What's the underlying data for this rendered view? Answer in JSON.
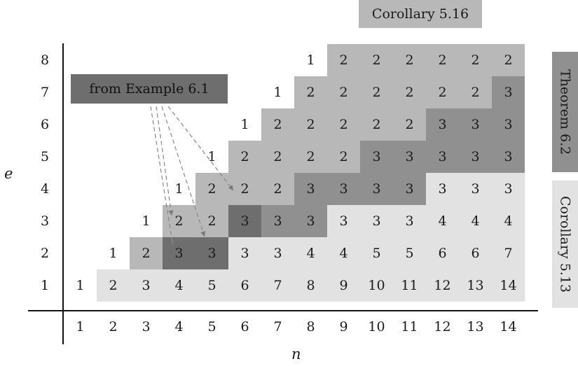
{
  "axes": {
    "y_title": "e",
    "x_title": "n",
    "y_labels": [
      "8",
      "7",
      "6",
      "5",
      "4",
      "3",
      "2",
      "1"
    ],
    "x_labels": [
      "1",
      "2",
      "3",
      "4",
      "5",
      "6",
      "7",
      "8",
      "9",
      "10",
      "11",
      "12",
      "13",
      "14"
    ]
  },
  "annotations": {
    "top_label": "Corollary 5.16",
    "example_label": "from Example 6.1",
    "theorem_label": "Theorem 6.2",
    "corollary_label": "Corollary 5.13"
  },
  "colors": {
    "white": "#ffffff",
    "light": "#e2e2e2",
    "medium": "#b8b8b8",
    "dark": "#909090",
    "darker": "#6e6e6e",
    "example_box": "#6e6e6e",
    "top_box": "#b8b8b8",
    "theorem_box": "#909090",
    "corollary_box": "#e2e2e2"
  },
  "rows": [
    {
      "e": "8",
      "cells": [
        {
          "v": "",
          "s": "white"
        },
        {
          "v": "",
          "s": "white"
        },
        {
          "v": "",
          "s": "white"
        },
        {
          "v": "",
          "s": "white"
        },
        {
          "v": "",
          "s": "white"
        },
        {
          "v": "",
          "s": "white"
        },
        {
          "v": "",
          "s": "white"
        },
        {
          "v": "1",
          "s": "white"
        },
        {
          "v": "2",
          "s": "medium"
        },
        {
          "v": "2",
          "s": "medium"
        },
        {
          "v": "2",
          "s": "medium"
        },
        {
          "v": "2",
          "s": "medium"
        },
        {
          "v": "2",
          "s": "medium"
        },
        {
          "v": "2",
          "s": "medium"
        }
      ]
    },
    {
      "e": "7",
      "cells": [
        {
          "v": "",
          "s": "white"
        },
        {
          "v": "",
          "s": "white"
        },
        {
          "v": "",
          "s": "white"
        },
        {
          "v": "",
          "s": "white"
        },
        {
          "v": "",
          "s": "white"
        },
        {
          "v": "",
          "s": "white"
        },
        {
          "v": "1",
          "s": "white"
        },
        {
          "v": "2",
          "s": "medium"
        },
        {
          "v": "2",
          "s": "medium"
        },
        {
          "v": "2",
          "s": "medium"
        },
        {
          "v": "2",
          "s": "medium"
        },
        {
          "v": "2",
          "s": "medium"
        },
        {
          "v": "2",
          "s": "medium"
        },
        {
          "v": "3",
          "s": "dark"
        }
      ]
    },
    {
      "e": "6",
      "cells": [
        {
          "v": "",
          "s": "white"
        },
        {
          "v": "",
          "s": "white"
        },
        {
          "v": "",
          "s": "white"
        },
        {
          "v": "",
          "s": "white"
        },
        {
          "v": "",
          "s": "white"
        },
        {
          "v": "1",
          "s": "white"
        },
        {
          "v": "2",
          "s": "medium"
        },
        {
          "v": "2",
          "s": "medium"
        },
        {
          "v": "2",
          "s": "medium"
        },
        {
          "v": "2",
          "s": "medium"
        },
        {
          "v": "2",
          "s": "medium"
        },
        {
          "v": "3",
          "s": "dark"
        },
        {
          "v": "3",
          "s": "dark"
        },
        {
          "v": "3",
          "s": "dark"
        }
      ]
    },
    {
      "e": "5",
      "cells": [
        {
          "v": "",
          "s": "white"
        },
        {
          "v": "",
          "s": "white"
        },
        {
          "v": "",
          "s": "white"
        },
        {
          "v": "",
          "s": "white"
        },
        {
          "v": "1",
          "s": "white"
        },
        {
          "v": "2",
          "s": "medium"
        },
        {
          "v": "2",
          "s": "medium"
        },
        {
          "v": "2",
          "s": "medium"
        },
        {
          "v": "2",
          "s": "medium"
        },
        {
          "v": "3",
          "s": "dark"
        },
        {
          "v": "3",
          "s": "dark"
        },
        {
          "v": "3",
          "s": "dark"
        },
        {
          "v": "3",
          "s": "dark"
        },
        {
          "v": "3",
          "s": "dark"
        }
      ]
    },
    {
      "e": "4",
      "cells": [
        {
          "v": "",
          "s": "white"
        },
        {
          "v": "",
          "s": "white"
        },
        {
          "v": "",
          "s": "white"
        },
        {
          "v": "1",
          "s": "white"
        },
        {
          "v": "2",
          "s": "medium"
        },
        {
          "v": "2",
          "s": "medium"
        },
        {
          "v": "2",
          "s": "medium"
        },
        {
          "v": "3",
          "s": "dark"
        },
        {
          "v": "3",
          "s": "dark"
        },
        {
          "v": "3",
          "s": "dark"
        },
        {
          "v": "3",
          "s": "dark"
        },
        {
          "v": "3",
          "s": "light"
        },
        {
          "v": "3",
          "s": "light"
        },
        {
          "v": "3",
          "s": "light"
        }
      ]
    },
    {
      "e": "3",
      "cells": [
        {
          "v": "",
          "s": "white"
        },
        {
          "v": "",
          "s": "white"
        },
        {
          "v": "1",
          "s": "white"
        },
        {
          "v": "2",
          "s": "medium"
        },
        {
          "v": "2",
          "s": "medium"
        },
        {
          "v": "3",
          "s": "darker"
        },
        {
          "v": "3",
          "s": "dark"
        },
        {
          "v": "3",
          "s": "dark"
        },
        {
          "v": "3",
          "s": "light"
        },
        {
          "v": "3",
          "s": "light"
        },
        {
          "v": "3",
          "s": "light"
        },
        {
          "v": "4",
          "s": "light"
        },
        {
          "v": "4",
          "s": "light"
        },
        {
          "v": "4",
          "s": "light"
        }
      ]
    },
    {
      "e": "2",
      "cells": [
        {
          "v": "",
          "s": "white"
        },
        {
          "v": "1",
          "s": "white"
        },
        {
          "v": "2",
          "s": "medium"
        },
        {
          "v": "3",
          "s": "darker"
        },
        {
          "v": "3",
          "s": "darker"
        },
        {
          "v": "3",
          "s": "light"
        },
        {
          "v": "3",
          "s": "light"
        },
        {
          "v": "4",
          "s": "light"
        },
        {
          "v": "4",
          "s": "light"
        },
        {
          "v": "5",
          "s": "light"
        },
        {
          "v": "5",
          "s": "light"
        },
        {
          "v": "6",
          "s": "light"
        },
        {
          "v": "6",
          "s": "light"
        },
        {
          "v": "7",
          "s": "light"
        }
      ]
    },
    {
      "e": "1",
      "cells": [
        {
          "v": "1",
          "s": "white"
        },
        {
          "v": "2",
          "s": "light"
        },
        {
          "v": "3",
          "s": "light"
        },
        {
          "v": "4",
          "s": "light"
        },
        {
          "v": "5",
          "s": "light"
        },
        {
          "v": "6",
          "s": "light"
        },
        {
          "v": "7",
          "s": "light"
        },
        {
          "v": "8",
          "s": "light"
        },
        {
          "v": "9",
          "s": "light"
        },
        {
          "v": "10",
          "s": "light"
        },
        {
          "v": "11",
          "s": "light"
        },
        {
          "v": "12",
          "s": "light"
        },
        {
          "v": "13",
          "s": "light"
        },
        {
          "v": "14",
          "s": "light"
        }
      ]
    }
  ]
}
